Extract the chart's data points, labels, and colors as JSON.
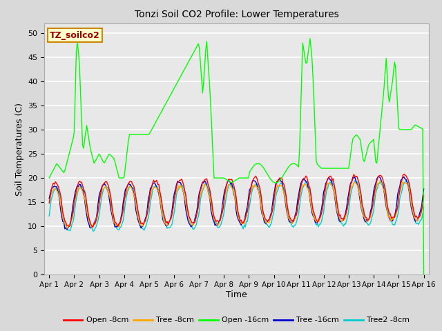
{
  "title": "Tonzi Soil CO2 Profile: Lower Temperatures",
  "xlabel": "Time",
  "ylabel": "Soil Temperatures (C)",
  "ylim": [
    0,
    52
  ],
  "yticks": [
    0,
    5,
    10,
    15,
    20,
    25,
    30,
    35,
    40,
    45,
    50
  ],
  "bg_color": "#d9d9d9",
  "plot_bg": "#e8e8e8",
  "legend_label": "TZ_soilco2",
  "series": {
    "open_8cm": {
      "label": "Open -8cm",
      "color": "#ff0000"
    },
    "tree_8cm": {
      "label": "Tree -8cm",
      "color": "#ffa500"
    },
    "open_16cm": {
      "label": "Open -16cm",
      "color": "#00ff00"
    },
    "tree_16cm": {
      "label": "Tree -16cm",
      "color": "#0000cc"
    },
    "tree2_8cm": {
      "label": "Tree2 -8cm",
      "color": "#00cccc"
    }
  },
  "xtick_labels": [
    "Apr 1",
    "Apr 2",
    "Apr 3",
    "Apr 4",
    "Apr 5",
    "Apr 6",
    "Apr 7",
    "Apr 8",
    "Apr 9",
    "Apr 10",
    "Apr 11",
    "Apr 12",
    "Apr 13",
    "Apr 14",
    "Apr 15",
    "Apr 16"
  ]
}
